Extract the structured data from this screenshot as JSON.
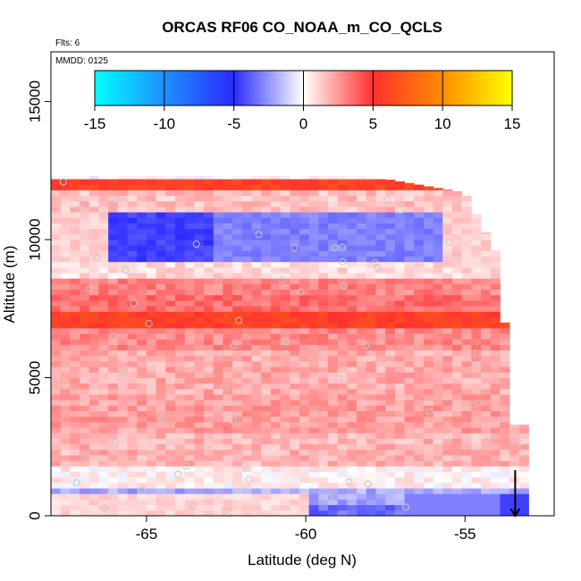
{
  "chart_data": {
    "type": "heatmap",
    "title": "ORCAS RF06 CO_NOAA_m_CO_QCLS",
    "flights_label": "Flts: 6",
    "date_label": "MMDD: 0125",
    "xlabel": "Latitude (deg N)",
    "ylabel": "Altitude (m)",
    "xlim": [
      -68.0,
      -52.2
    ],
    "ylim": [
      0,
      16800
    ],
    "x_ticks": [
      -65,
      -60,
      -55
    ],
    "y_ticks": [
      0,
      5000,
      10000,
      15000
    ],
    "x_tick_labels": [
      "-65",
      "-60",
      "-55"
    ],
    "y_tick_labels": [
      "0",
      "5000",
      "10000",
      "15000"
    ],
    "colorbar": {
      "min": -15,
      "max": 15,
      "ticks": [
        -15,
        -10,
        -5,
        0,
        5,
        10,
        15
      ],
      "tick_labels": [
        "-15",
        "-10",
        "-5",
        "0",
        "5",
        "10",
        "15"
      ],
      "colors": [
        "#00ffff",
        "#1e90ff",
        "#2b2bff",
        "#ffffff",
        "#ff3030",
        "#ff8c00",
        "#ffff00"
      ]
    },
    "grid": false,
    "legend": "colorbar at top inside plot",
    "lat_range": [
      -68.0,
      -53.2
    ],
    "alt_step_m": 200,
    "lat_step_deg": 0.3,
    "profile_arrow": {
      "lat": -53.2,
      "alt_top": 650,
      "alt_bottom": 0,
      "color": "#000000"
    },
    "layers": [
      {
        "alt": [
          0,
          400
        ],
        "value": -3.5
      },
      {
        "alt": [
          400,
          1000
        ],
        "value": -2.0
      },
      {
        "alt": [
          1000,
          1800
        ],
        "value": 0.3
      },
      {
        "alt": [
          1800,
          3000
        ],
        "value": 1.8
      },
      {
        "alt": [
          3000,
          4500
        ],
        "value": 2.3
      },
      {
        "alt": [
          4500,
          6000
        ],
        "value": 2.0
      },
      {
        "alt": [
          6000,
          6800
        ],
        "value": 2.8
      },
      {
        "alt": [
          6800,
          7400
        ],
        "value": 5.8
      },
      {
        "alt": [
          7400,
          8000
        ],
        "value": 3.5
      },
      {
        "alt": [
          8000,
          8600
        ],
        "value": 3.0
      },
      {
        "alt": [
          8600,
          9200
        ],
        "value": 0.8
      },
      {
        "alt": [
          9200,
          10200
        ],
        "value": -1.0
      },
      {
        "alt": [
          10200,
          11000
        ],
        "value": -3.0
      },
      {
        "alt": [
          11000,
          11800
        ],
        "value": 1.5
      },
      {
        "alt": [
          11800,
          12300
        ],
        "value": 6.0
      }
    ]
  }
}
